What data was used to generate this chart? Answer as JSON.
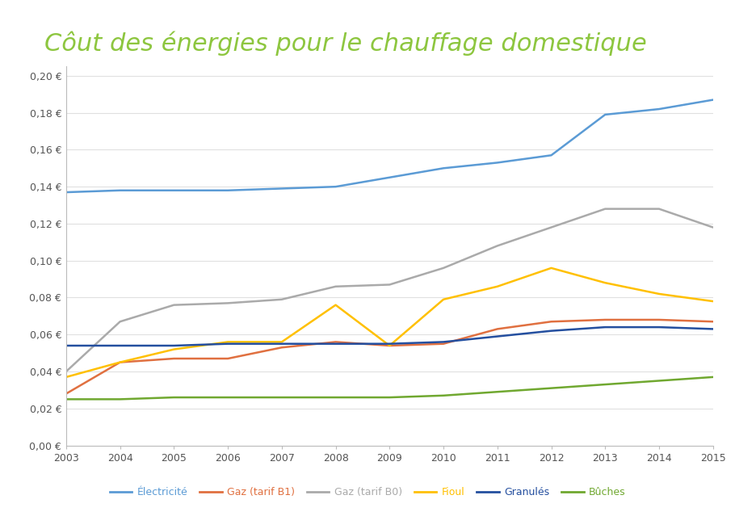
{
  "title": "Côut des énergies pour le chauffage domestique",
  "years": [
    2003,
    2004,
    2005,
    2006,
    2007,
    2008,
    2009,
    2010,
    2011,
    2012,
    2013,
    2014,
    2015
  ],
  "series": {
    "Électricité": {
      "values": [
        0.137,
        0.138,
        0.138,
        0.138,
        0.139,
        0.14,
        0.145,
        0.15,
        0.153,
        0.157,
        0.179,
        0.182,
        0.187
      ],
      "color": "#5B9BD5",
      "linewidth": 1.8
    },
    "Gaz (tarif B1)": {
      "values": [
        0.028,
        0.045,
        0.047,
        0.047,
        0.053,
        0.056,
        0.054,
        0.055,
        0.063,
        0.067,
        0.068,
        0.068,
        0.067
      ],
      "color": "#E07040",
      "linewidth": 1.8
    },
    "Gaz (tarif B0)": {
      "values": [
        0.04,
        0.067,
        0.076,
        0.077,
        0.079,
        0.086,
        0.087,
        0.096,
        0.108,
        0.118,
        0.128,
        0.128,
        0.118
      ],
      "color": "#AAAAAA",
      "linewidth": 1.8
    },
    "Fioul": {
      "values": [
        0.037,
        0.045,
        0.052,
        0.056,
        0.056,
        0.076,
        0.054,
        0.079,
        0.086,
        0.096,
        0.088,
        0.082,
        0.078
      ],
      "color": "#FFC000",
      "linewidth": 1.8
    },
    "Granulés": {
      "values": [
        0.054,
        0.054,
        0.054,
        0.055,
        0.055,
        0.055,
        0.055,
        0.056,
        0.059,
        0.062,
        0.064,
        0.064,
        0.063
      ],
      "color": "#244F9F",
      "linewidth": 1.8
    },
    "Bûches": {
      "values": [
        0.025,
        0.025,
        0.026,
        0.026,
        0.026,
        0.026,
        0.026,
        0.027,
        0.029,
        0.031,
        0.033,
        0.035,
        0.037
      ],
      "color": "#70A830",
      "linewidth": 1.8
    }
  },
  "ylim": [
    0.0,
    0.205
  ],
  "yticks": [
    0.0,
    0.02,
    0.04,
    0.06,
    0.08,
    0.1,
    0.12,
    0.14,
    0.16,
    0.18,
    0.2
  ],
  "background_color": "#FFFFFF",
  "title_color": "#8DC63F",
  "title_fontsize": 22,
  "axis_color": "#555555",
  "grid_color": "#E0E0E0",
  "tick_label_color": "#555555",
  "legend_order": [
    "Électricité",
    "Gaz (tarif B1)",
    "Gaz (tarif B0)",
    "Fioul",
    "Granulés",
    "Bûches"
  ]
}
